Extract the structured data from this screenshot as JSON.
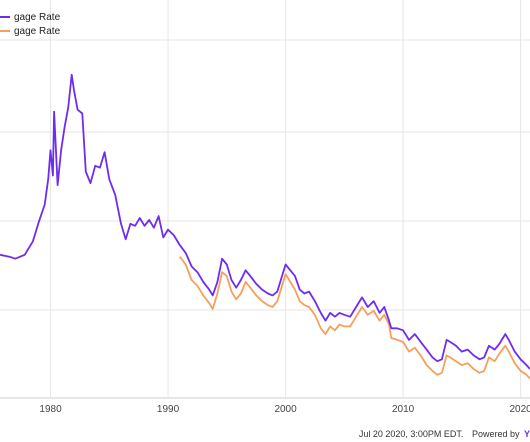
{
  "legend": [
    {
      "label": "gage Rate",
      "color": "#6e2cf3"
    },
    {
      "label": "gage Rate",
      "color": "#f5a05b"
    }
  ],
  "footer": {
    "timestamp": "Jul 20 2020, 3:00PM EDT.",
    "powered_by": "Powered by",
    "brand": "Y"
  },
  "chart_data": {
    "type": "line",
    "xlabel": "",
    "ylabel": "",
    "xlim": [
      1975.7,
      2020.8
    ],
    "ylim": [
      1.5,
      20
    ],
    "grid": true,
    "x_ticks": [
      "1980",
      "1990",
      "2000",
      "2010",
      "2020"
    ],
    "series": [
      {
        "color": "#6e2cf3",
        "x": [
          1975.7,
          1976.5,
          1977,
          1977.8,
          1978.5,
          1979,
          1979.5,
          1979.8,
          1980.0,
          1980.2,
          1980.3,
          1980.6,
          1980.9,
          1981.2,
          1981.5,
          1981.8,
          1982.0,
          1982.3,
          1982.7,
          1983.0,
          1983.4,
          1983.8,
          1984.2,
          1984.6,
          1985.0,
          1985.5,
          1986.0,
          1986.4,
          1986.8,
          1987.2,
          1987.6,
          1988.0,
          1988.4,
          1988.8,
          1989.2,
          1989.6,
          1990.0,
          1990.5,
          1991.0,
          1991.5,
          1992.0,
          1992.5,
          1993.0,
          1993.5,
          1993.8,
          1994.2,
          1994.6,
          1995.0,
          1995.4,
          1995.8,
          1996.2,
          1996.6,
          1997.0,
          1997.5,
          1998.0,
          1998.5,
          1998.9,
          1999.3,
          1999.7,
          2000.0,
          2000.4,
          2000.8,
          2001.2,
          2001.6,
          2002.0,
          2002.5,
          2003.0,
          2003.4,
          2003.8,
          2004.2,
          2004.6,
          2005.0,
          2005.5,
          2006.0,
          2006.5,
          2007.0,
          2007.5,
          2008.0,
          2008.4,
          2008.8,
          2009.0,
          2009.5,
          2010.0,
          2010.5,
          2011.0,
          2011.5,
          2012.0,
          2012.5,
          2012.9,
          2013.3,
          2013.7,
          2014.0,
          2014.5,
          2015.0,
          2015.5,
          2016.0,
          2016.5,
          2016.9,
          2017.3,
          2017.8,
          2018.2,
          2018.7,
          2019.0,
          2019.5,
          2020.0,
          2020.5,
          2020.8
        ],
        "values": [
          8.9,
          8.8,
          8.7,
          8.9,
          9.6,
          10.6,
          11.5,
          12.8,
          14.3,
          13.0,
          16.3,
          12.5,
          14.3,
          15.5,
          16.5,
          18.2,
          17.4,
          16.4,
          16.2,
          13.2,
          12.6,
          13.5,
          13.4,
          14.2,
          12.8,
          12.0,
          10.5,
          9.7,
          10.5,
          10.4,
          10.8,
          10.4,
          10.7,
          10.3,
          10.9,
          9.8,
          10.2,
          9.9,
          9.4,
          9.0,
          8.3,
          8.0,
          7.5,
          7.1,
          6.8,
          7.5,
          8.7,
          8.4,
          7.6,
          7.2,
          7.6,
          8.1,
          7.8,
          7.4,
          7.1,
          6.9,
          6.8,
          7.0,
          7.8,
          8.4,
          8.1,
          7.8,
          7.1,
          6.9,
          7.0,
          6.5,
          5.9,
          5.5,
          5.9,
          5.7,
          5.9,
          5.8,
          5.7,
          6.2,
          6.7,
          6.2,
          6.5,
          5.9,
          6.2,
          5.5,
          5.1,
          5.1,
          5.0,
          4.5,
          4.8,
          4.4,
          4.0,
          3.6,
          3.4,
          3.5,
          4.5,
          4.4,
          4.2,
          3.9,
          4.0,
          3.7,
          3.5,
          3.6,
          4.2,
          4.0,
          4.3,
          4.8,
          4.5,
          3.9,
          3.5,
          3.2,
          3.0
        ]
      },
      {
        "color": "#f5a05b",
        "x": [
          1991.0,
          1991.5,
          1992.0,
          1992.5,
          1993.0,
          1993.5,
          1993.8,
          1994.2,
          1994.6,
          1995.0,
          1995.4,
          1995.8,
          1996.2,
          1996.6,
          1997.0,
          1997.5,
          1998.0,
          1998.5,
          1998.9,
          1999.3,
          1999.7,
          2000.0,
          2000.4,
          2000.8,
          2001.2,
          2001.6,
          2002.0,
          2002.5,
          2003.0,
          2003.4,
          2003.8,
          2004.2,
          2004.6,
          2005.0,
          2005.5,
          2006.0,
          2006.5,
          2007.0,
          2007.5,
          2008.0,
          2008.4,
          2008.8,
          2009.0,
          2009.5,
          2010.0,
          2010.5,
          2011.0,
          2011.5,
          2012.0,
          2012.5,
          2012.9,
          2013.3,
          2013.7,
          2014.0,
          2014.5,
          2015.0,
          2015.5,
          2016.0,
          2016.5,
          2016.9,
          2017.3,
          2017.8,
          2018.2,
          2018.7,
          2019.0,
          2019.5,
          2020.0,
          2020.5,
          2020.8
        ],
        "values": [
          8.8,
          8.4,
          7.6,
          7.3,
          6.8,
          6.4,
          6.1,
          6.9,
          8.0,
          7.8,
          7.0,
          6.6,
          6.9,
          7.5,
          7.2,
          6.8,
          6.5,
          6.3,
          6.2,
          6.5,
          7.3,
          7.9,
          7.5,
          7.1,
          6.5,
          6.3,
          6.2,
          5.8,
          5.1,
          4.8,
          5.2,
          5.0,
          5.3,
          5.2,
          5.2,
          5.7,
          6.2,
          5.8,
          6.0,
          5.5,
          5.8,
          5.3,
          4.6,
          4.5,
          4.4,
          3.9,
          4.1,
          3.7,
          3.2,
          2.9,
          2.7,
          2.8,
          3.7,
          3.6,
          3.4,
          3.2,
          3.3,
          3.0,
          2.8,
          2.9,
          3.6,
          3.4,
          3.8,
          4.2,
          3.9,
          3.3,
          2.9,
          2.7,
          2.5
        ]
      }
    ]
  }
}
